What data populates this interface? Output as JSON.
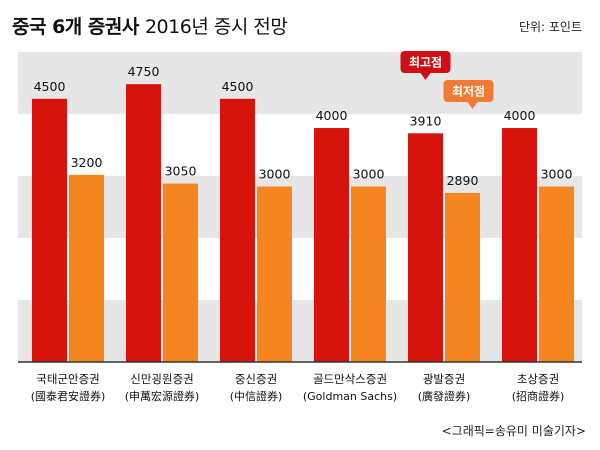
{
  "header": {
    "title_bold": "중국 6개 증권사",
    "title_light": "2016년 증시 전망",
    "unit": "단위: 포인트"
  },
  "credit": "<그래픽=송유미 미술기자>",
  "colors": {
    "high_bar": "#d6140c",
    "low_bar": "#f5861f",
    "band": "#e6e6e6",
    "axis": "#333333",
    "callout_high": "#cc1016",
    "callout_low": "#f37a32"
  },
  "chart_data": {
    "type": "bar",
    "title": "중국 6개 증권사 2016년 증시 전망",
    "ylabel": "포인트",
    "ylim": [
      0,
      5300
    ],
    "categories": [
      {
        "name": "국태군안증권",
        "hanja": "(國泰君安證券)"
      },
      {
        "name": "신만굉원증권",
        "hanja": "(申萬宏源證券)"
      },
      {
        "name": "중신증권",
        "hanja": "(中信證券)"
      },
      {
        "name": "골드만삭스증권",
        "hanja": "(Goldman Sachs)"
      },
      {
        "name": "광발증권",
        "hanja": "(廣發證券)"
      },
      {
        "name": "초상증권",
        "hanja": "(招商證券)"
      }
    ],
    "series": [
      {
        "name": "최고점",
        "values": [
          4500,
          4750,
          4500,
          4000,
          3910,
          4000
        ]
      },
      {
        "name": "최저점",
        "values": [
          3200,
          3050,
          3000,
          3000,
          2890,
          3000
        ]
      }
    ],
    "annotations": [
      {
        "text": "최고점",
        "series": 0,
        "category_index": 4
      },
      {
        "text": "최저점",
        "series": 1,
        "category_index": 4
      }
    ]
  }
}
